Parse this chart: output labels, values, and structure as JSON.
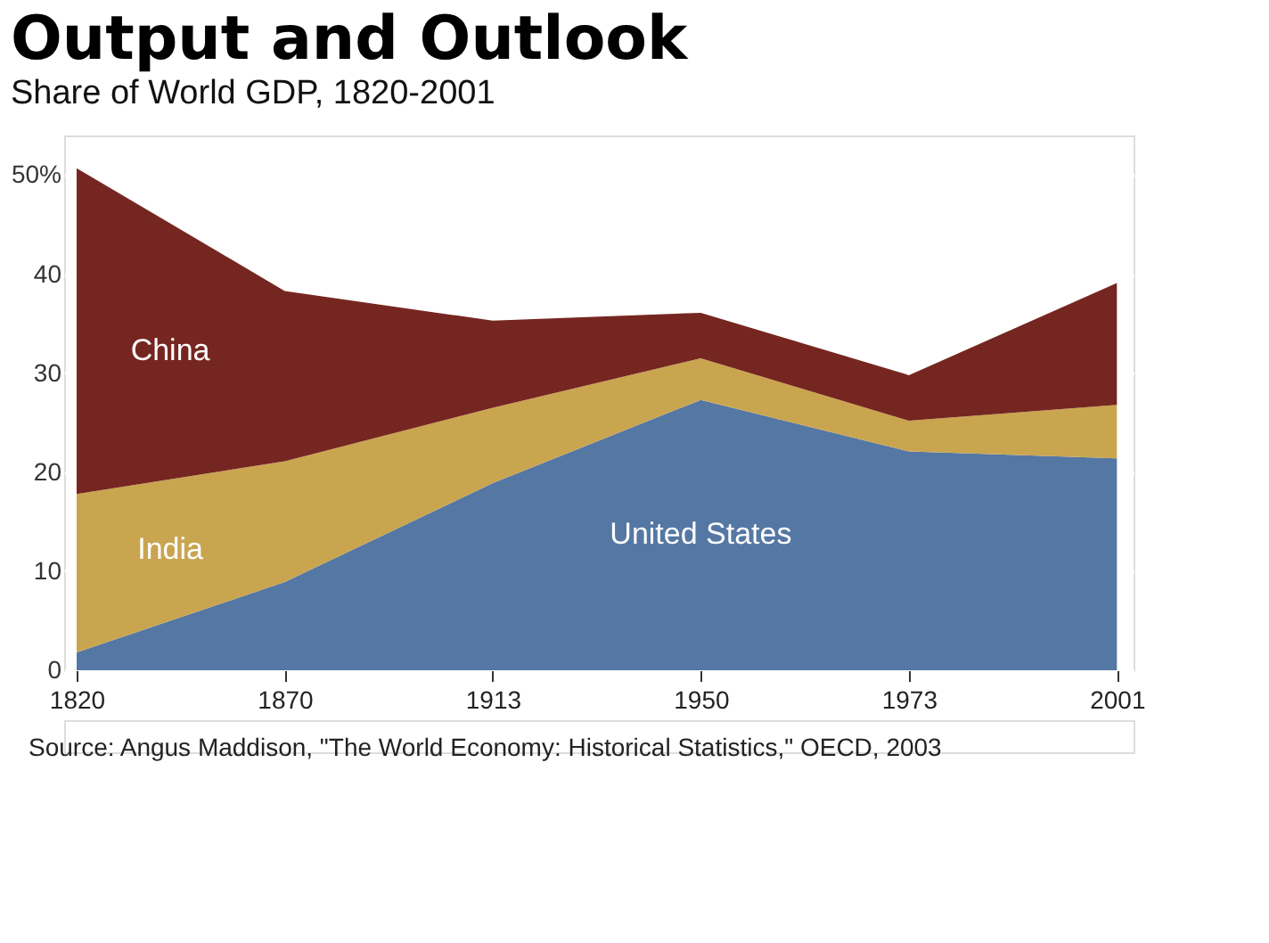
{
  "chart_data": {
    "type": "area",
    "title": "Output and Outlook",
    "subtitle": "Share of World GDP, 1820-2001",
    "categories": [
      "1820",
      "1870",
      "1913",
      "1950",
      "1973",
      "2001"
    ],
    "stacked": true,
    "series": [
      {
        "name": "United States",
        "color": "#5577a3",
        "values": [
          1.8,
          8.9,
          18.9,
          27.3,
          22.1,
          21.4
        ]
      },
      {
        "name": "India",
        "color": "#c9a550",
        "values": [
          16.0,
          12.2,
          7.6,
          4.2,
          3.1,
          5.4
        ]
      },
      {
        "name": "China",
        "color": "#762620",
        "values": [
          32.9,
          17.2,
          8.8,
          4.6,
          4.6,
          12.3
        ]
      }
    ],
    "ylim": [
      0,
      54
    ],
    "yticks": [
      0,
      10,
      20,
      30,
      40,
      {
        "value": 50,
        "label": "50%"
      }
    ],
    "grid": "y",
    "legend": false,
    "annotations": [
      "Source: Angus Maddison, \"The World Economy: Historical Statistics,\" OECD, 2003"
    ]
  }
}
